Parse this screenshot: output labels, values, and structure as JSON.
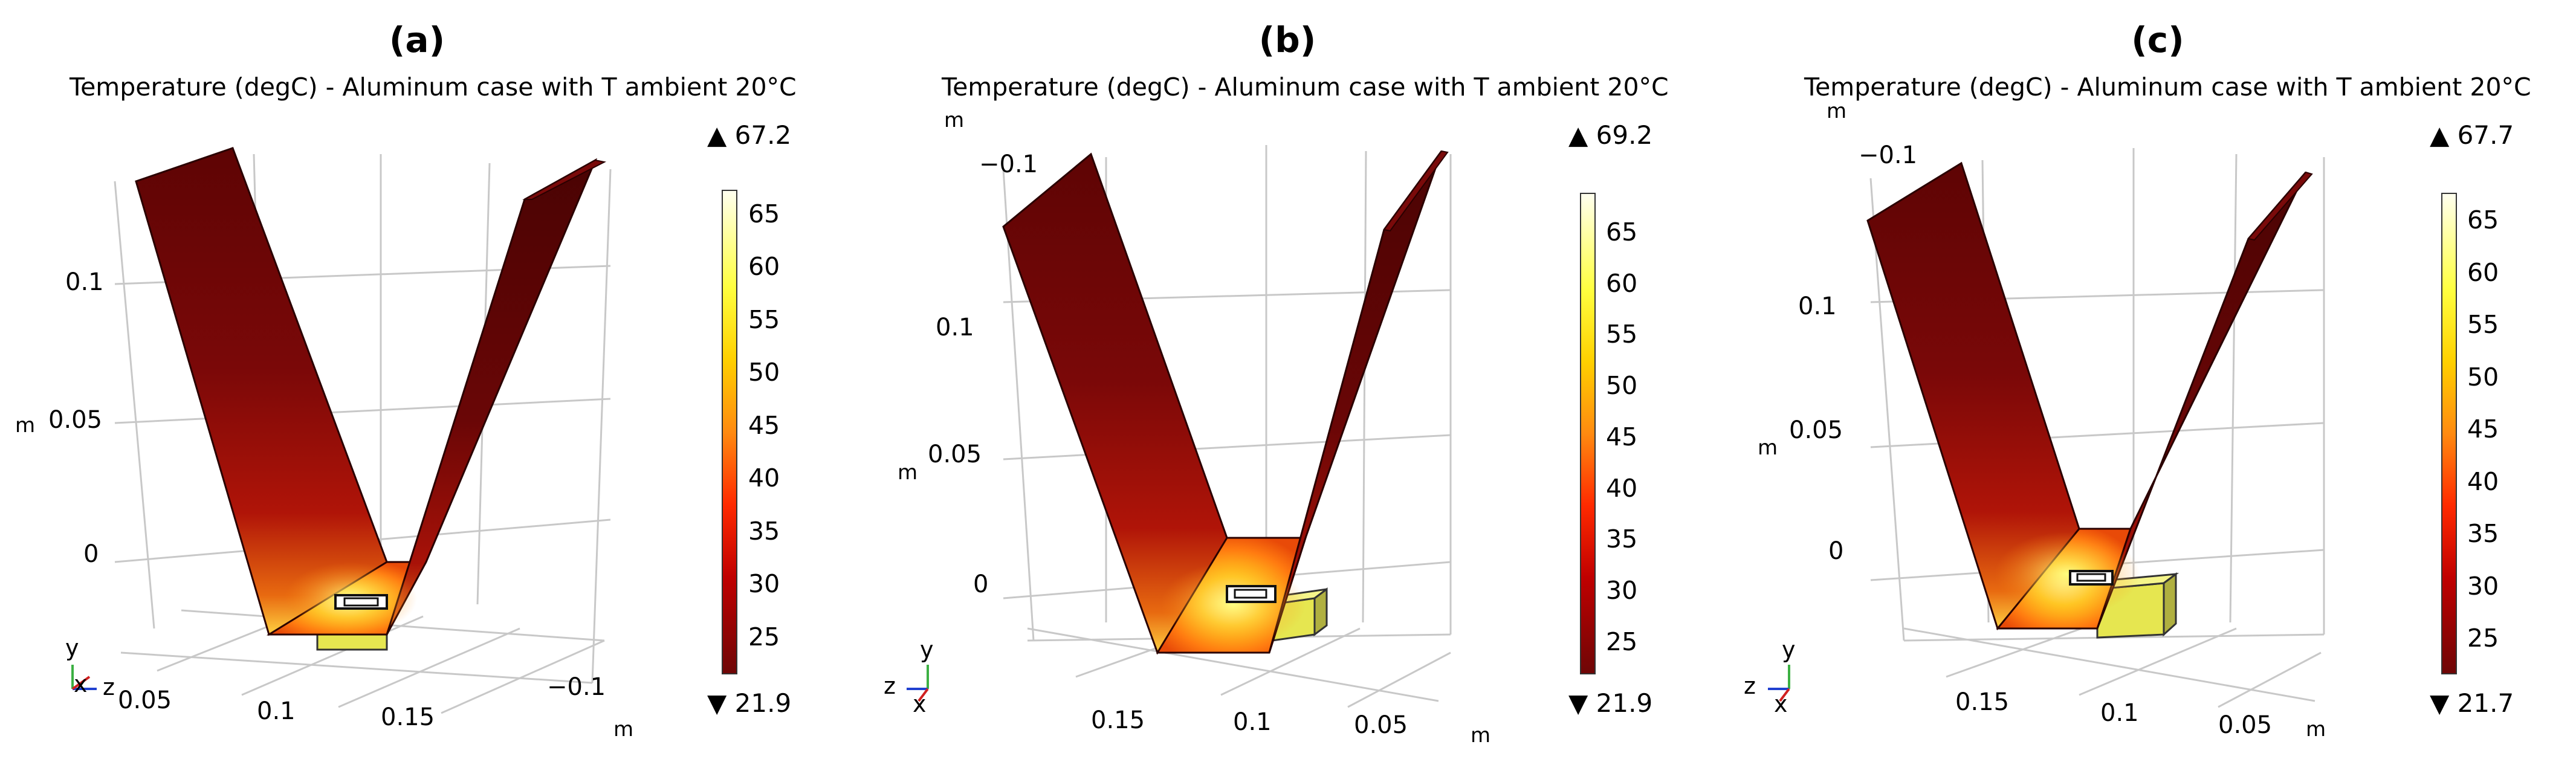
{
  "panels": [
    {
      "label": "(a)",
      "title": "Temperature (degC)  - Aluminum case with T ambient 20°C",
      "max_marker": "▲ 67.2",
      "min_marker": "▼ 21.9",
      "colorbar_ticks": [
        "65",
        "60",
        "55",
        "50",
        "45",
        "40",
        "35",
        "30",
        "25"
      ],
      "axis_tick_labels": [
        "0.1",
        "0.05",
        "0",
        "0.05",
        "0.1",
        "0.15",
        "−0.1"
      ],
      "axis_unit_labels": [
        "m",
        "m"
      ],
      "triad_axes": [
        "y",
        "x",
        "z"
      ]
    },
    {
      "label": "(b)",
      "title": "Temperature (degC)  - Aluminum case with T ambient 20°C",
      "max_marker": "▲ 69.2",
      "min_marker": "▼ 21.9",
      "colorbar_ticks": [
        "65",
        "60",
        "55",
        "50",
        "45",
        "40",
        "35",
        "30",
        "25"
      ],
      "axis_tick_labels": [
        "−0.1",
        "0.1",
        "0.05",
        "0",
        "0.15",
        "0.1",
        "0.05"
      ],
      "axis_unit_labels": [
        "m",
        "m",
        "m"
      ],
      "triad_axes": [
        "y",
        "z",
        "x"
      ]
    },
    {
      "label": "(c)",
      "title": "Temperature (degC)  - Aluminum case with T ambient 20°C",
      "max_marker": "▲ 67.7",
      "min_marker": "▼ 21.7",
      "colorbar_ticks": [
        "65",
        "60",
        "55",
        "50",
        "45",
        "40",
        "35",
        "30",
        "25"
      ],
      "axis_tick_labels": [
        "−0.1",
        "0.1",
        "0.05",
        "0",
        "0.15",
        "0.1",
        "0.05"
      ],
      "axis_unit_labels": [
        "m",
        "m",
        "m"
      ],
      "triad_axes": [
        "y",
        "z",
        "x"
      ]
    }
  ],
  "colors": {
    "hot": "#ffff66",
    "mid": "#ff7a10",
    "warm": "#d81e05",
    "cool": "#6e0606",
    "edge": "#2a0000",
    "grid": "#c8c8c8",
    "component": "#e6e650"
  }
}
